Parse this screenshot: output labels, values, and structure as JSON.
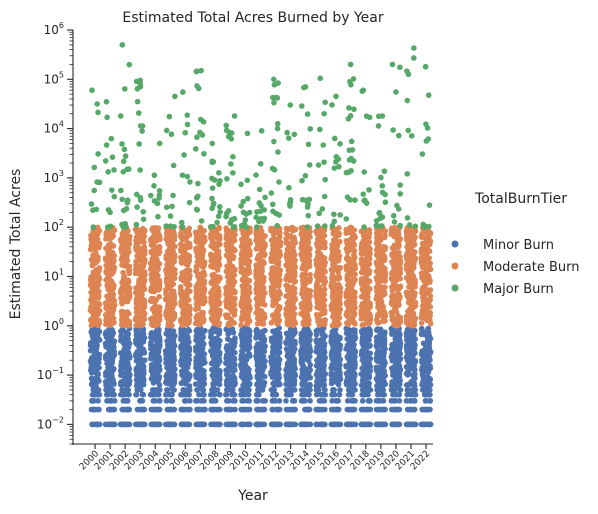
{
  "chart_data": {
    "type": "scatter",
    "title": "Estimated Total Acres Burned by Year",
    "xlabel": "Year",
    "ylabel": "Estimated Total Acres",
    "yscale": "log",
    "ylim": [
      0.004,
      1000000
    ],
    "y_ticks": [
      {
        "base": "10",
        "exp": "−2",
        "value": 0.01
      },
      {
        "base": "10",
        "exp": "−1",
        "value": 0.1
      },
      {
        "base": "10",
        "exp": "0",
        "value": 1
      },
      {
        "base": "10",
        "exp": "1",
        "value": 10
      },
      {
        "base": "10",
        "exp": "2",
        "value": 100
      },
      {
        "base": "10",
        "exp": "3",
        "value": 1000
      },
      {
        "base": "10",
        "exp": "4",
        "value": 10000
      },
      {
        "base": "10",
        "exp": "5",
        "value": 100000
      },
      {
        "base": "10",
        "exp": "6",
        "value": 1000000
      }
    ],
    "categories": [
      "2000",
      "2001",
      "2002",
      "2003",
      "2004",
      "2005",
      "2006",
      "2007",
      "2008",
      "2009",
      "2010",
      "2011",
      "2012",
      "2013",
      "2014",
      "2015",
      "2016",
      "2017",
      "2018",
      "2019",
      "2020",
      "2021",
      "2022"
    ],
    "legend": {
      "title": "TotalBurnTier",
      "placement": "right",
      "entries": [
        {
          "name": "Minor Burn",
          "color": "#4c72b0"
        },
        {
          "name": "Moderate Burn",
          "color": "#dd8452"
        },
        {
          "name": "Major Burn",
          "color": "#55a868"
        }
      ]
    },
    "series": [
      {
        "name": "Minor Burn",
        "color": "#4c72b0",
        "y_range": [
          0.01,
          0.9
        ]
      },
      {
        "name": "Moderate Burn",
        "color": "#dd8452",
        "y_range": [
          1,
          100
        ]
      },
      {
        "name": "Major Burn",
        "color": "#55a868",
        "y_range": [
          100,
          500000
        ]
      }
    ],
    "major_max_by_year": [
      60000,
      35000,
      500000,
      95000,
      5000,
      45000,
      55000,
      150000,
      5000,
      18000,
      8000,
      9000,
      100000,
      30000,
      70000,
      105000,
      45000,
      200000,
      60000,
      18000,
      200000,
      430000,
      180000
    ],
    "grid": false
  }
}
